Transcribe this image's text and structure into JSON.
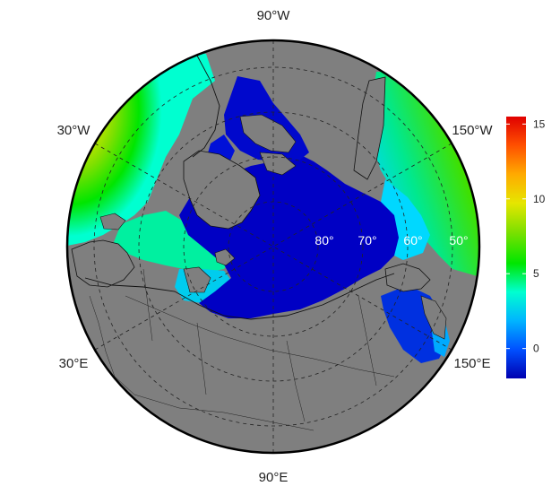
{
  "map": {
    "projection": "north-polar-stereographic",
    "longitude_labels": [
      {
        "text": "90°W"
      },
      {
        "text": "150°W"
      },
      {
        "text": "150°E"
      },
      {
        "text": "90°E"
      },
      {
        "text": "30°E"
      },
      {
        "text": "30°W"
      }
    ],
    "latitude_labels": [
      "80°",
      "70°",
      "60°",
      "50°"
    ],
    "colors": {
      "land": "#7f7f7f",
      "coast": "#111111",
      "graticule": "#222222"
    }
  },
  "colorbar": {
    "ticks": [
      "15",
      "10",
      "5",
      "0"
    ],
    "tick_values": [
      15,
      10,
      5,
      0
    ],
    "range": [
      -2,
      15.5
    ],
    "palette": [
      "#0000b0",
      "#0050ff",
      "#00b4ff",
      "#00ffd0",
      "#00e600",
      "#7ee000",
      "#e6e600",
      "#ffaa00",
      "#ff5000",
      "#e00000"
    ]
  }
}
